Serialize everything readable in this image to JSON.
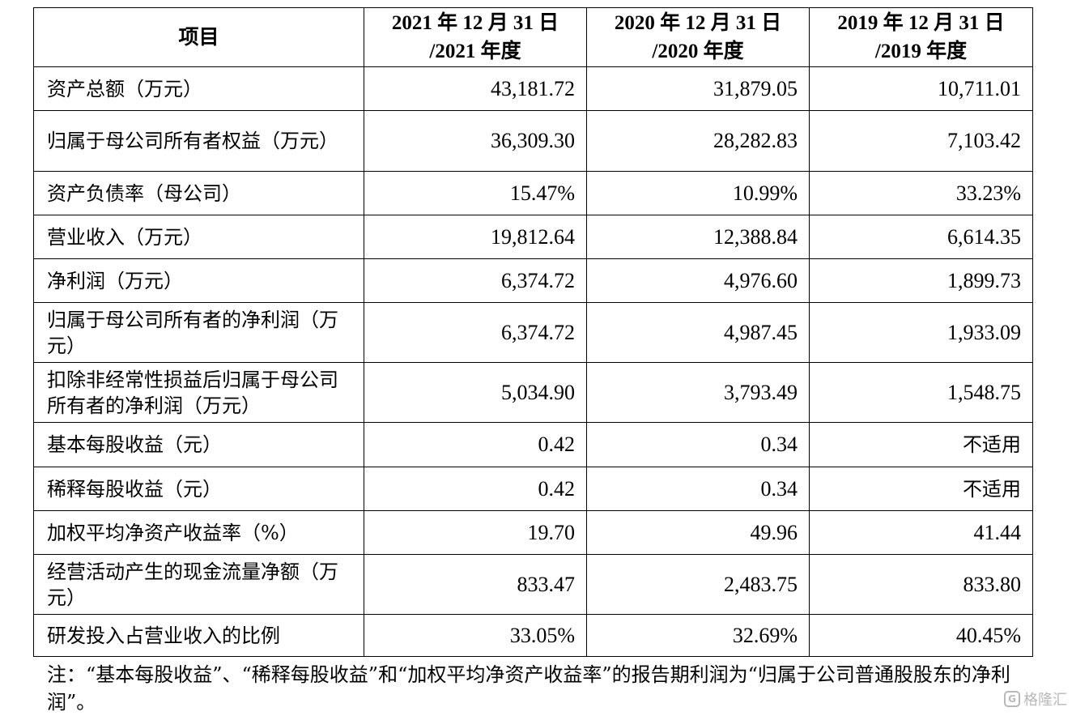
{
  "table": {
    "headers": [
      "项目",
      "2021 年 12 月 31 日\n/2021 年度",
      "2020 年 12 月 31 日\n/2020 年度",
      "2019 年 12 月 31 日\n/2019 年度"
    ],
    "rows": [
      {
        "label": "资产总额（万元）",
        "values": [
          "43,181.72",
          "31,879.05",
          "10,711.01"
        ]
      },
      {
        "label": "归属于母公司所有者权益（万元）",
        "values": [
          "36,309.30",
          "28,282.83",
          "7,103.42"
        ]
      },
      {
        "label": "资产负债率（母公司）",
        "values": [
          "15.47%",
          "10.99%",
          "33.23%"
        ]
      },
      {
        "label": "营业收入（万元）",
        "values": [
          "19,812.64",
          "12,388.84",
          "6,614.35"
        ]
      },
      {
        "label": "净利润（万元）",
        "values": [
          "6,374.72",
          "4,976.60",
          "1,899.73"
        ]
      },
      {
        "label": "归属于母公司所有者的净利润（万元）",
        "values": [
          "6,374.72",
          "4,987.45",
          "1,933.09"
        ]
      },
      {
        "label": "扣除非经常性损益后归属于母公司所有者的净利润（万元）",
        "values": [
          "5,034.90",
          "3,793.49",
          "1,548.75"
        ]
      },
      {
        "label": "基本每股收益（元）",
        "values": [
          "0.42",
          "0.34",
          "不适用"
        ]
      },
      {
        "label": "稀释每股收益（元）",
        "values": [
          "0.42",
          "0.34",
          "不适用"
        ]
      },
      {
        "label": "加权平均净资产收益率（%）",
        "values": [
          "19.70",
          "49.96",
          "41.44"
        ]
      },
      {
        "label": "经营活动产生的现金流量净额（万元）",
        "values": [
          "833.47",
          "2,483.75",
          "833.80"
        ]
      },
      {
        "label": "研发投入占营业收入的比例",
        "values": [
          "33.05%",
          "32.69%",
          "40.45%"
        ]
      }
    ]
  },
  "note": "注：“基本每股收益”、“稀释每股收益”和“加权平均净资产收益率”的报告期利润为“归属于公司普通股股东的净利润”。",
  "watermark": {
    "logo_text": "G",
    "text": "格隆汇"
  }
}
